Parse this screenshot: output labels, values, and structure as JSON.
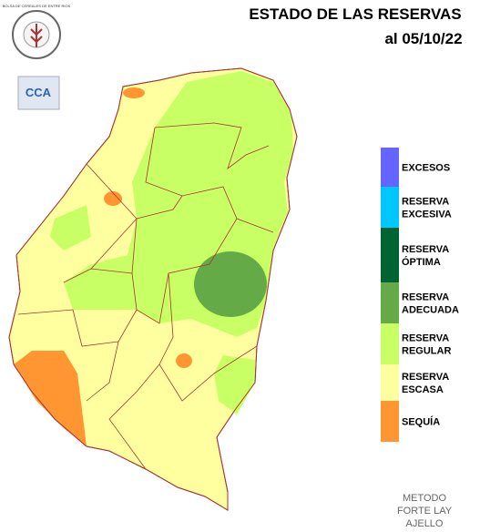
{
  "header": {
    "title": "ESTADO DE LAS RESERVAS",
    "date": "al 05/10/22"
  },
  "logos": {
    "institution": "BOLSA DE CEREALES DE ENTRE RIOS",
    "badge": "CCA"
  },
  "legend": [
    {
      "label": [
        "EXCESOS"
      ],
      "color": "#6464ff"
    },
    {
      "label": [
        "RESERVA",
        "EXCESIVA"
      ],
      "color": "#00c8ff"
    },
    {
      "label": [
        "RESERVA",
        "ÓPTIMA"
      ],
      "color": "#006432"
    },
    {
      "label": [
        "RESERVA",
        "ADECUADA"
      ],
      "color": "#64aa46"
    },
    {
      "label": [
        "RESERVA",
        "REGULAR"
      ],
      "color": "#c8ff64"
    },
    {
      "label": [
        "RESERVA",
        "ESCASA"
      ],
      "color": "#ffffa0"
    },
    {
      "label": [
        "SEQUÍA"
      ],
      "color": "#ff9632"
    }
  ],
  "footer": [
    "METODO",
    "FORTE LAY",
    "AJELLO"
  ]
}
